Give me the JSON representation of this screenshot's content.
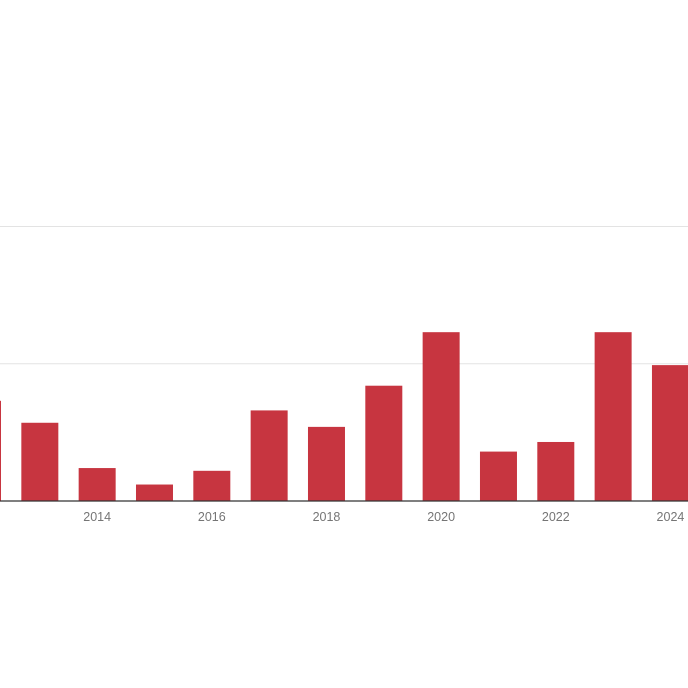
{
  "chart_data": {
    "type": "bar",
    "title": "",
    "xlabel": "",
    "ylabel": "",
    "categories": [
      "2012",
      "2013",
      "2014",
      "2015",
      "2016",
      "2017",
      "2018",
      "2019",
      "2020",
      "2021",
      "2022",
      "2023",
      "2024"
    ],
    "values": [
      73,
      57,
      24,
      12,
      22,
      66,
      54,
      84,
      123,
      36,
      43,
      123,
      99
    ],
    "x_tick_labels": [
      "2014",
      "2016",
      "2018",
      "2020",
      "2022",
      "2024"
    ],
    "ylim": [
      0,
      200
    ],
    "y_gridlines": [
      0,
      100,
      200
    ],
    "grid": true,
    "legend": "none",
    "colors": {
      "bar": "#c73540",
      "gridline": "#e3e3e3",
      "baseline": "#333333",
      "tick_text": "#757575"
    }
  }
}
